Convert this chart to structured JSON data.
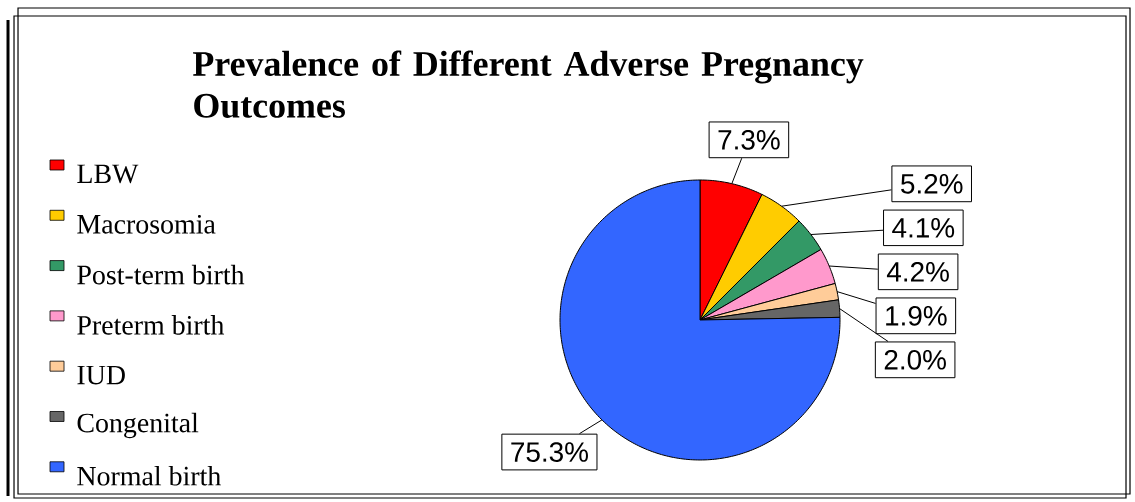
{
  "chart_data": {
    "type": "pie",
    "title": "Prevalence of Different Adverse Pregnancy Outcomes",
    "categories": [
      "LBW",
      "Macrosomia",
      "Post-term birth",
      "Preterm birth",
      "IUD",
      "Congenital",
      "Normal birth"
    ],
    "values": [
      7.3,
      5.2,
      4.1,
      4.2,
      1.9,
      2.0,
      75.3
    ],
    "value_labels": [
      "7.3%",
      "5.2%",
      "4.1%",
      "4.2%",
      "1.9%",
      "2.0%",
      "75.3%"
    ],
    "colors": [
      "#ff0000",
      "#ffcc00",
      "#339966",
      "#ff99cc",
      "#ffcc99",
      "#666666",
      "#3366ff"
    ],
    "legend": "left"
  }
}
